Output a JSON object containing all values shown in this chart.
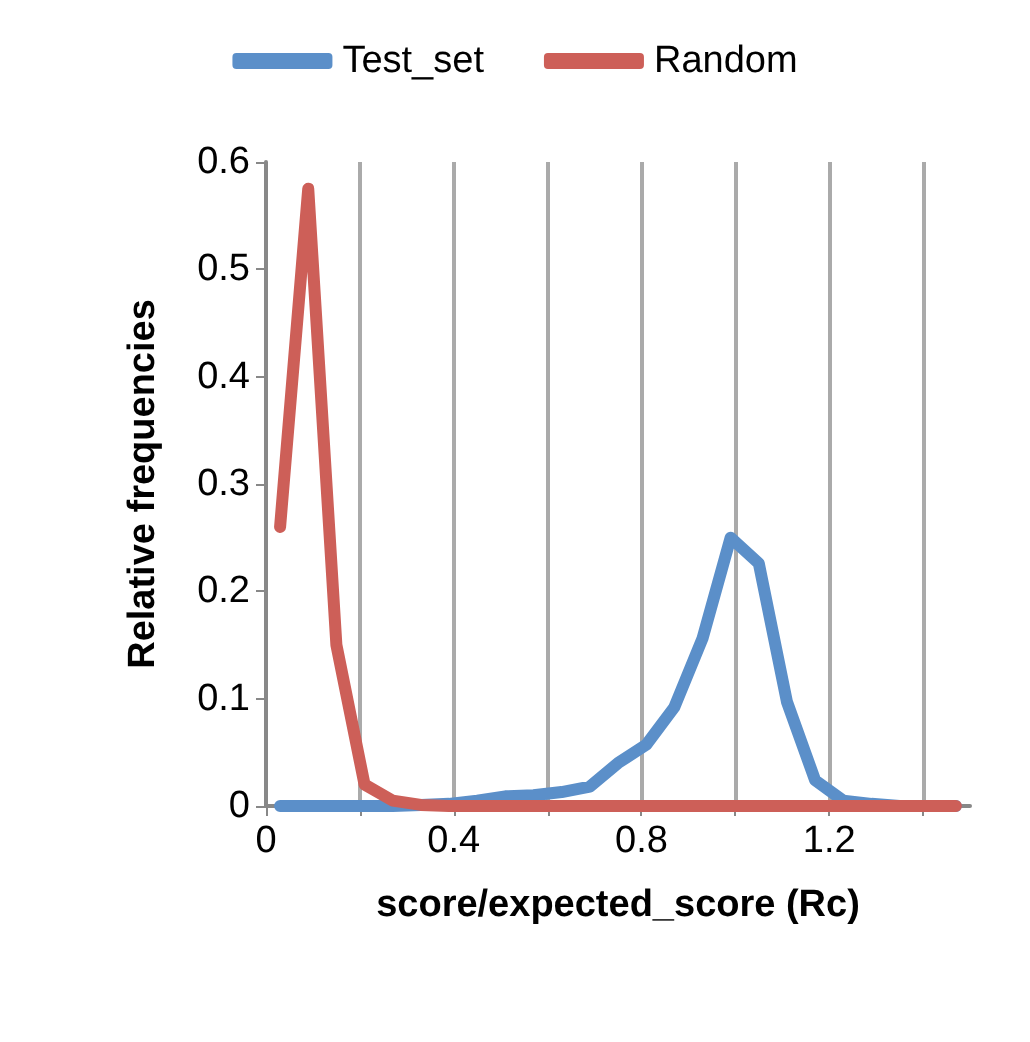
{
  "chart_data": {
    "type": "line",
    "xlabel": "score/expected_score (Rc)",
    "ylabel": "Relative frequencies",
    "x": [
      0.03,
      0.09,
      0.15,
      0.21,
      0.27,
      0.33,
      0.39,
      0.45,
      0.51,
      0.57,
      0.63,
      0.69,
      0.75,
      0.81,
      0.87,
      0.93,
      0.99,
      1.05,
      1.11,
      1.17,
      1.23,
      1.29,
      1.35,
      1.41,
      1.47
    ],
    "series": [
      {
        "name": "Test_set",
        "color": "#5b8fc9",
        "values": [
          0,
          0,
          0,
          0,
          0,
          0.001,
          0.002,
          0.005,
          0.009,
          0.01,
          0.013,
          0.018,
          0.04,
          0.057,
          0.092,
          0.156,
          0.25,
          0.226,
          0.097,
          0.024,
          0.005,
          0.002,
          0,
          0,
          0
        ]
      },
      {
        "name": "Random",
        "color": "#cd5f58",
        "values": [
          0.26,
          0.575,
          0.15,
          0.02,
          0.005,
          0.001,
          0,
          0,
          0,
          0,
          0,
          0,
          0,
          0,
          0,
          0,
          0,
          0,
          0,
          0,
          0,
          0,
          0,
          0,
          0
        ]
      }
    ],
    "xlim": [
      0,
      1.5
    ],
    "xticks": [
      0,
      {
        "value": 0.2,
        "label": null
      },
      0.4,
      {
        "value": 0.6,
        "label": null
      },
      0.8,
      {
        "value": 1.0,
        "label": null
      },
      1.2,
      {
        "value": 1.4,
        "label": null
      }
    ],
    "ylim": [
      0,
      0.6
    ],
    "yticks": [
      0,
      0.1,
      0.2,
      0.3,
      0.4,
      0.5,
      0.6
    ],
    "grid": "x",
    "legend": "top",
    "marker": "none",
    "line_style": "solid"
  }
}
